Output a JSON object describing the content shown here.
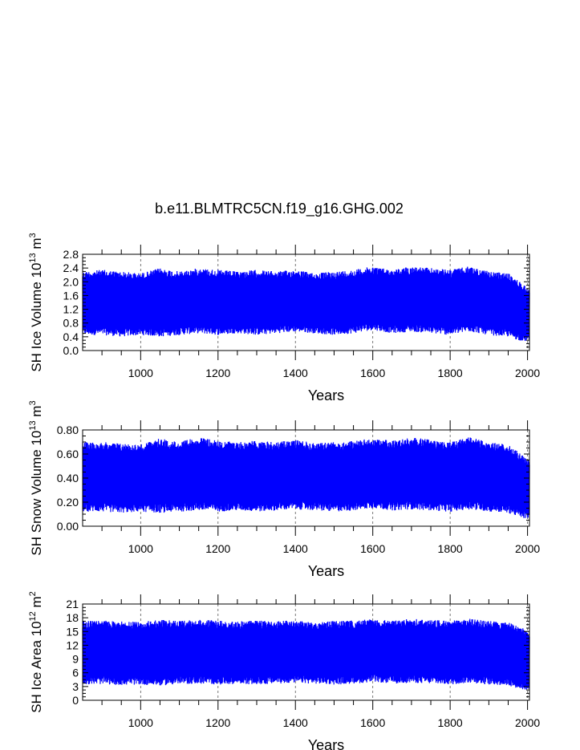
{
  "page": {
    "title": "b.e11.BLMTRC5CN.f19_g16.GHG.002",
    "series_color": "#0000ff"
  },
  "chart_data": [
    {
      "type": "area",
      "title": "b.e11.BLMTRC5CN.f19_g16.GHG.002",
      "xlabel": "Years",
      "ylabel": {
        "main": "SH Ice Volume 10",
        "exp": "13",
        "unit": " m",
        "unit_exp": "3"
      },
      "xlim": [
        850,
        2005
      ],
      "ylim": [
        0,
        2.8
      ],
      "xticks": [
        1000,
        1200,
        1400,
        1600,
        1800,
        2000
      ],
      "xtick_labels": [
        "1000",
        "1200",
        "1400",
        "1600",
        "1800",
        "2000"
      ],
      "yticks": [
        0.0,
        0.4,
        0.8,
        1.2,
        1.6,
        2.0,
        2.4,
        2.8
      ],
      "ytick_labels": [
        "0.0",
        "0.4",
        "0.8",
        "1.2",
        "1.6",
        "2.0",
        "2.4",
        "2.8"
      ],
      "grid": "x-dashed",
      "envelope": {
        "x": [
          850,
          900,
          950,
          1000,
          1050,
          1100,
          1150,
          1200,
          1250,
          1300,
          1350,
          1400,
          1450,
          1500,
          1550,
          1600,
          1650,
          1700,
          1750,
          1800,
          1850,
          1900,
          1950,
          1975,
          2005
        ],
        "max": [
          2.3,
          2.35,
          2.3,
          2.25,
          2.4,
          2.3,
          2.4,
          2.35,
          2.3,
          2.35,
          2.3,
          2.35,
          2.25,
          2.3,
          2.35,
          2.45,
          2.35,
          2.45,
          2.4,
          2.35,
          2.45,
          2.3,
          2.25,
          2.05,
          1.8
        ],
        "min": [
          0.45,
          0.45,
          0.4,
          0.45,
          0.4,
          0.45,
          0.5,
          0.45,
          0.5,
          0.45,
          0.5,
          0.55,
          0.5,
          0.45,
          0.5,
          0.6,
          0.5,
          0.55,
          0.5,
          0.45,
          0.55,
          0.45,
          0.4,
          0.3,
          0.25
        ]
      }
    },
    {
      "type": "area",
      "xlabel": "Years",
      "ylabel": {
        "main": "SH Snow Volume 10",
        "exp": "13",
        "unit": " m",
        "unit_exp": "3"
      },
      "xlim": [
        850,
        2005
      ],
      "ylim": [
        0,
        0.8
      ],
      "xticks": [
        1000,
        1200,
        1400,
        1600,
        1800,
        2000
      ],
      "xtick_labels": [
        "1000",
        "1200",
        "1400",
        "1600",
        "1800",
        "2000"
      ],
      "yticks": [
        0.0,
        0.2,
        0.4,
        0.6,
        0.8
      ],
      "ytick_labels": [
        "0.00",
        "0.20",
        "0.40",
        "0.60",
        "0.80"
      ],
      "grid": "x-dashed",
      "envelope": {
        "x": [
          850,
          900,
          950,
          1000,
          1050,
          1100,
          1150,
          1200,
          1250,
          1300,
          1350,
          1400,
          1450,
          1500,
          1550,
          1600,
          1650,
          1700,
          1750,
          1800,
          1850,
          1900,
          1950,
          1975,
          2005
        ],
        "max": [
          0.7,
          0.7,
          0.69,
          0.68,
          0.73,
          0.7,
          0.74,
          0.71,
          0.7,
          0.71,
          0.7,
          0.72,
          0.69,
          0.7,
          0.71,
          0.73,
          0.71,
          0.74,
          0.72,
          0.7,
          0.74,
          0.7,
          0.68,
          0.62,
          0.55
        ],
        "min": [
          0.12,
          0.12,
          0.11,
          0.12,
          0.11,
          0.12,
          0.13,
          0.12,
          0.13,
          0.12,
          0.13,
          0.14,
          0.13,
          0.12,
          0.13,
          0.15,
          0.13,
          0.14,
          0.13,
          0.12,
          0.14,
          0.12,
          0.11,
          0.08,
          0.05
        ]
      }
    },
    {
      "type": "area",
      "xlabel": "Years",
      "ylabel": {
        "main": "SH Ice Area 10",
        "exp": "12",
        "unit": " m",
        "unit_exp": "2"
      },
      "xlim": [
        850,
        2005
      ],
      "ylim": [
        0,
        21
      ],
      "xticks": [
        1000,
        1200,
        1400,
        1600,
        1800,
        2000
      ],
      "xtick_labels": [
        "1000",
        "1200",
        "1400",
        "1600",
        "1800",
        "2000"
      ],
      "yticks": [
        0,
        3,
        6,
        9,
        12,
        15,
        18,
        21
      ],
      "ytick_labels": [
        "0",
        "3",
        "6",
        "9",
        "12",
        "15",
        "18",
        "21"
      ],
      "grid": "x-dashed",
      "envelope": {
        "x": [
          850,
          900,
          950,
          1000,
          1050,
          1100,
          1150,
          1200,
          1250,
          1300,
          1350,
          1400,
          1450,
          1500,
          1550,
          1600,
          1650,
          1700,
          1750,
          1800,
          1850,
          1900,
          1950,
          1975,
          2005
        ],
        "max": [
          17.3,
          17.4,
          17.2,
          17.1,
          17.6,
          17.3,
          17.6,
          17.4,
          17.2,
          17.4,
          17.2,
          17.5,
          17.1,
          17.3,
          17.4,
          17.7,
          17.4,
          17.8,
          17.6,
          17.3,
          17.8,
          17.3,
          17.0,
          16.2,
          15.2
        ],
        "min": [
          3.5,
          3.5,
          3.3,
          3.4,
          3.2,
          3.5,
          3.6,
          3.4,
          3.6,
          3.4,
          3.6,
          3.8,
          3.6,
          3.4,
          3.6,
          4.0,
          3.6,
          3.8,
          3.6,
          3.4,
          3.8,
          3.4,
          3.2,
          2.6,
          2.0
        ]
      }
    }
  ]
}
